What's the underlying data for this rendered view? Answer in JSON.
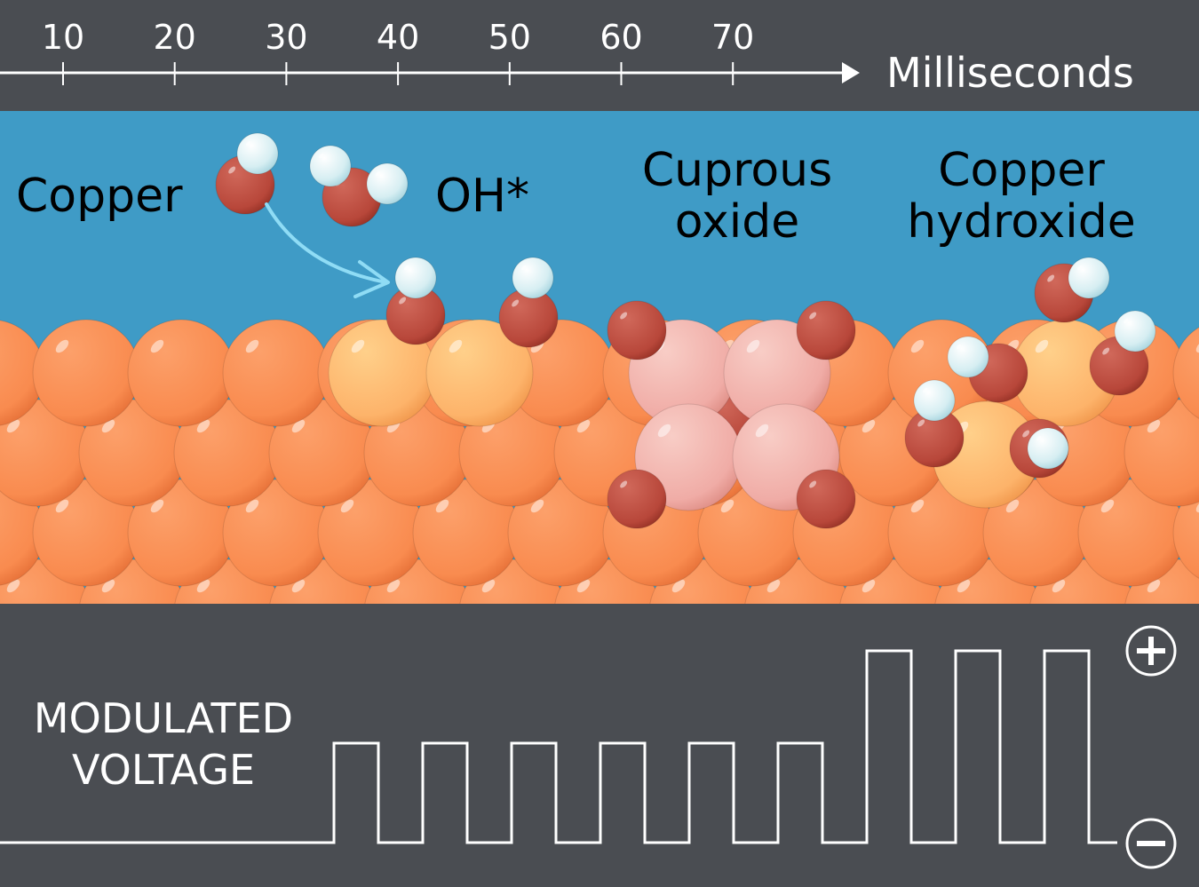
{
  "axis": {
    "ticks": [
      "10",
      "20",
      "30",
      "40",
      "50",
      "60",
      "70"
    ],
    "unit_label": "Milliseconds"
  },
  "labels": {
    "copper": "Copper",
    "oh": "OH*",
    "cuprous_oxide_line1": "Cuprous",
    "cuprous_oxide_line2": "oxide",
    "copper_hydroxide_line1": "Copper",
    "copper_hydroxide_line2": "hydroxide"
  },
  "voltage": {
    "label_line1": "MODULATED",
    "label_line2": "VOLTAGE",
    "plus_symbol": "+",
    "minus_symbol": "−",
    "pulse_levels": [
      "low",
      "low",
      "low",
      "low",
      "low",
      "low",
      "high",
      "high",
      "high"
    ]
  },
  "colors": {
    "background": "#4a4d52",
    "water": "#3f9bc6",
    "copper_atom": "#f98b4f",
    "oxidized_copper_atom": "#fdb36a",
    "cuprous_atom": "#f0aca6",
    "oxygen": "#b8473a",
    "hydrogen": "#d6eef2",
    "arrow": "#8fdcf5"
  }
}
